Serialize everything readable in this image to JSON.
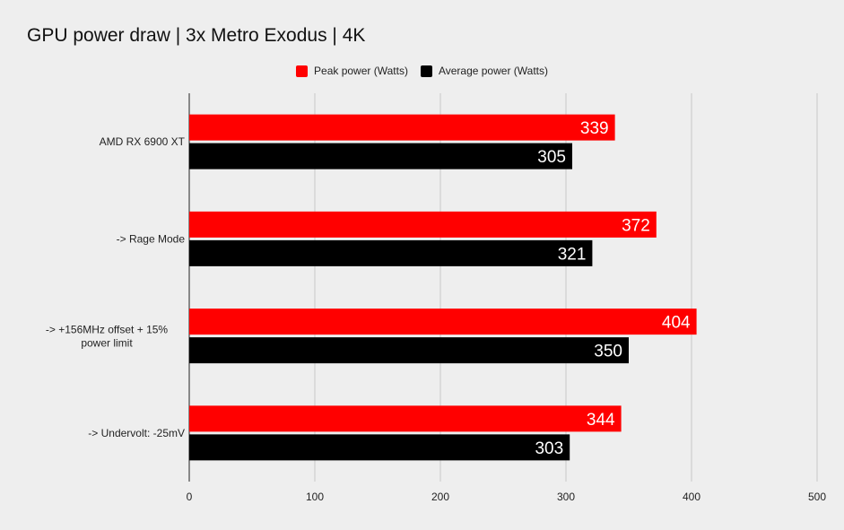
{
  "chart_data": {
    "type": "bar",
    "orientation": "horizontal",
    "title": "GPU power draw | 3x Metro Exodus | 4K",
    "xlabel": "",
    "ylabel": "",
    "categories": [
      "AMD RX 6900 XT",
      "-> Rage Mode",
      "-> +156MHz offset + 15% power limit",
      "-> Undervolt: -25mV"
    ],
    "series": [
      {
        "name": "Peak power (Watts)",
        "color": "#ff0000",
        "values": [
          339,
          372,
          404,
          344
        ]
      },
      {
        "name": "Average power (Watts)",
        "color": "#000000",
        "values": [
          305,
          321,
          350,
          303
        ]
      }
    ],
    "xlim": [
      0,
      500
    ],
    "xticks": [
      0,
      100,
      200,
      300,
      400,
      500
    ],
    "grid": true,
    "legend": "top-center",
    "data_labels": true
  }
}
